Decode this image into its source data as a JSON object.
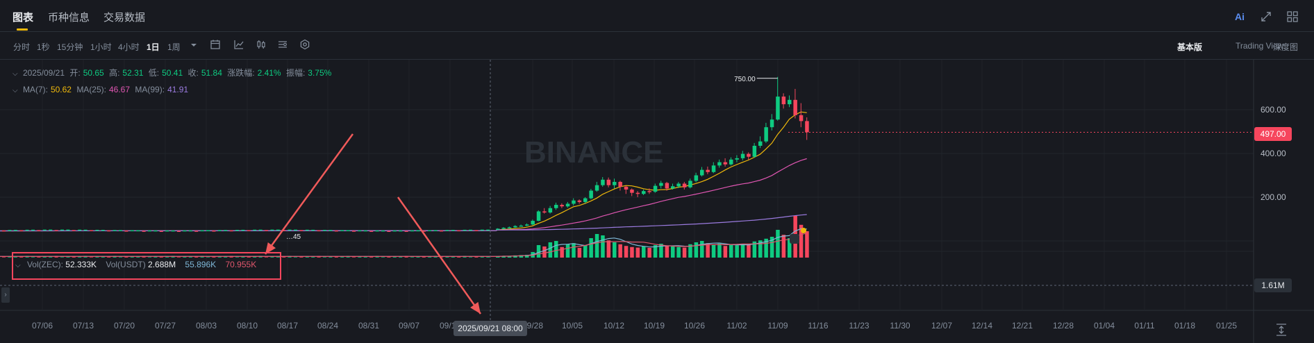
{
  "top_tabs": [
    "图表",
    "币种信息",
    "交易数据"
  ],
  "top_icons": [
    "ai-icon",
    "expand-icon",
    "grid-icon"
  ],
  "ai_label": "Ai",
  "intervals": [
    "分时",
    "1秒",
    "15分钟",
    "1小时",
    "4小时",
    "1日",
    "1周"
  ],
  "active_interval": "1日",
  "view_options": [
    "基本版",
    "Trading View",
    "深度图"
  ],
  "watermark": "BINANCE",
  "ohlc_legend": {
    "date": "2025/09/21",
    "open_label": "开:",
    "open": "50.65",
    "high_label": "高:",
    "high": "52.31",
    "low_label": "低:",
    "low": "50.41",
    "close_label": "收:",
    "close": "51.84",
    "change_label": "涨跌幅:",
    "change": "2.41%",
    "amplitude_label": "振幅:",
    "amplitude": "3.75%"
  },
  "ma_legend": {
    "ma7_label": "MA(7):",
    "ma7": "50.62",
    "ma25_label": "MA(25):",
    "ma25": "46.67",
    "ma99_label": "MA(99):",
    "ma99": "41.91"
  },
  "vol_legend": {
    "zec_label": "Vol(ZEC):",
    "zec": "52.333K",
    "usdt_label": "Vol(USDT)",
    "usdt": "2.688M",
    "ma1": "55.896K",
    "ma2": "70.955K"
  },
  "current_price": "497.00",
  "current_volume": "1.61M",
  "crosshair_date": "2025/09/21 08:00",
  "colors": {
    "up": "#0ecb81",
    "down": "#f6465d",
    "ma7": "#f0b90b",
    "ma25": "#e056b2",
    "ma99": "#9b7be0",
    "arrow": "#f05a5a"
  },
  "chart_data": {
    "type": "candlestick",
    "x_tick_labels": [
      "07/06",
      "07/13",
      "07/20",
      "07/27",
      "08/03",
      "08/10",
      "08/17",
      "08/24",
      "08/31",
      "09/07",
      "09/14",
      "09/28",
      "10/05",
      "10/12",
      "10/19",
      "10/26",
      "11/02",
      "11/09",
      "11/16",
      "11/23",
      "11/30",
      "12/07",
      "12/14",
      "12/21",
      "12/28",
      "01/04",
      "01/11",
      "01/18",
      "01/25"
    ],
    "y_tick_labels": [
      "600.00",
      "400.00",
      "200.00"
    ],
    "ylim": [
      0,
      800
    ],
    "annotations": {
      "max_label": "750.00",
      "min_label": "…45"
    },
    "candles_recent": [
      {
        "o": 52,
        "c": 56,
        "h": 58,
        "l": 50
      },
      {
        "o": 56,
        "c": 60,
        "h": 63,
        "l": 54
      },
      {
        "o": 60,
        "c": 62,
        "h": 66,
        "l": 58
      },
      {
        "o": 62,
        "c": 68,
        "h": 72,
        "l": 60
      },
      {
        "o": 68,
        "c": 70,
        "h": 75,
        "l": 66
      },
      {
        "o": 70,
        "c": 75,
        "h": 80,
        "l": 68
      },
      {
        "o": 75,
        "c": 92,
        "h": 98,
        "l": 72
      },
      {
        "o": 92,
        "c": 135,
        "h": 140,
        "l": 90
      },
      {
        "o": 135,
        "c": 130,
        "h": 150,
        "l": 125
      },
      {
        "o": 130,
        "c": 150,
        "h": 160,
        "l": 125
      },
      {
        "o": 150,
        "c": 165,
        "h": 175,
        "l": 142
      },
      {
        "o": 165,
        "c": 158,
        "h": 172,
        "l": 150
      },
      {
        "o": 158,
        "c": 170,
        "h": 178,
        "l": 152
      },
      {
        "o": 170,
        "c": 185,
        "h": 195,
        "l": 162
      },
      {
        "o": 185,
        "c": 178,
        "h": 190,
        "l": 170
      },
      {
        "o": 178,
        "c": 195,
        "h": 200,
        "l": 172
      },
      {
        "o": 195,
        "c": 230,
        "h": 238,
        "l": 190
      },
      {
        "o": 230,
        "c": 255,
        "h": 270,
        "l": 225
      },
      {
        "o": 255,
        "c": 280,
        "h": 292,
        "l": 248
      },
      {
        "o": 280,
        "c": 255,
        "h": 290,
        "l": 245
      },
      {
        "o": 255,
        "c": 270,
        "h": 285,
        "l": 240
      },
      {
        "o": 270,
        "c": 248,
        "h": 275,
        "l": 230
      },
      {
        "o": 248,
        "c": 235,
        "h": 252,
        "l": 215
      },
      {
        "o": 235,
        "c": 220,
        "h": 240,
        "l": 205
      },
      {
        "o": 220,
        "c": 215,
        "h": 228,
        "l": 200
      },
      {
        "o": 215,
        "c": 228,
        "h": 235,
        "l": 210
      },
      {
        "o": 228,
        "c": 225,
        "h": 240,
        "l": 215
      },
      {
        "o": 225,
        "c": 252,
        "h": 262,
        "l": 220
      },
      {
        "o": 252,
        "c": 265,
        "h": 275,
        "l": 240
      },
      {
        "o": 265,
        "c": 240,
        "h": 270,
        "l": 230
      },
      {
        "o": 240,
        "c": 250,
        "h": 262,
        "l": 235
      },
      {
        "o": 250,
        "c": 262,
        "h": 270,
        "l": 242
      },
      {
        "o": 262,
        "c": 245,
        "h": 270,
        "l": 235
      },
      {
        "o": 245,
        "c": 275,
        "h": 285,
        "l": 240
      },
      {
        "o": 275,
        "c": 300,
        "h": 312,
        "l": 268
      },
      {
        "o": 300,
        "c": 325,
        "h": 338,
        "l": 295
      },
      {
        "o": 325,
        "c": 315,
        "h": 340,
        "l": 305
      },
      {
        "o": 315,
        "c": 345,
        "h": 360,
        "l": 310
      },
      {
        "o": 345,
        "c": 360,
        "h": 372,
        "l": 335
      },
      {
        "o": 360,
        "c": 350,
        "h": 378,
        "l": 340
      },
      {
        "o": 350,
        "c": 372,
        "h": 382,
        "l": 345
      },
      {
        "o": 372,
        "c": 378,
        "h": 392,
        "l": 360
      },
      {
        "o": 378,
        "c": 398,
        "h": 412,
        "l": 368
      },
      {
        "o": 398,
        "c": 385,
        "h": 405,
        "l": 372
      },
      {
        "o": 385,
        "c": 435,
        "h": 448,
        "l": 380
      },
      {
        "o": 435,
        "c": 455,
        "h": 478,
        "l": 425
      },
      {
        "o": 455,
        "c": 520,
        "h": 540,
        "l": 448
      },
      {
        "o": 520,
        "c": 555,
        "h": 580,
        "l": 505
      },
      {
        "o": 555,
        "c": 660,
        "h": 750,
        "l": 550
      },
      {
        "o": 660,
        "c": 625,
        "h": 675,
        "l": 605
      },
      {
        "o": 625,
        "c": 645,
        "h": 665,
        "l": 612
      },
      {
        "o": 645,
        "c": 575,
        "h": 695,
        "l": 560
      },
      {
        "o": 575,
        "c": 548,
        "h": 630,
        "l": 520
      },
      {
        "o": 548,
        "c": 497,
        "h": 565,
        "l": 462
      }
    ],
    "volume_recent": [
      4,
      6,
      5,
      8,
      9,
      10,
      20,
      45,
      40,
      55,
      60,
      38,
      48,
      52,
      35,
      45,
      70,
      85,
      80,
      62,
      55,
      48,
      42,
      38,
      36,
      40,
      35,
      45,
      50,
      42,
      40,
      38,
      36,
      48,
      55,
      60,
      52,
      45,
      50,
      42,
      46,
      44,
      50,
      48,
      58,
      62,
      68,
      75,
      100,
      82,
      70,
      150,
      118,
      95
    ]
  }
}
